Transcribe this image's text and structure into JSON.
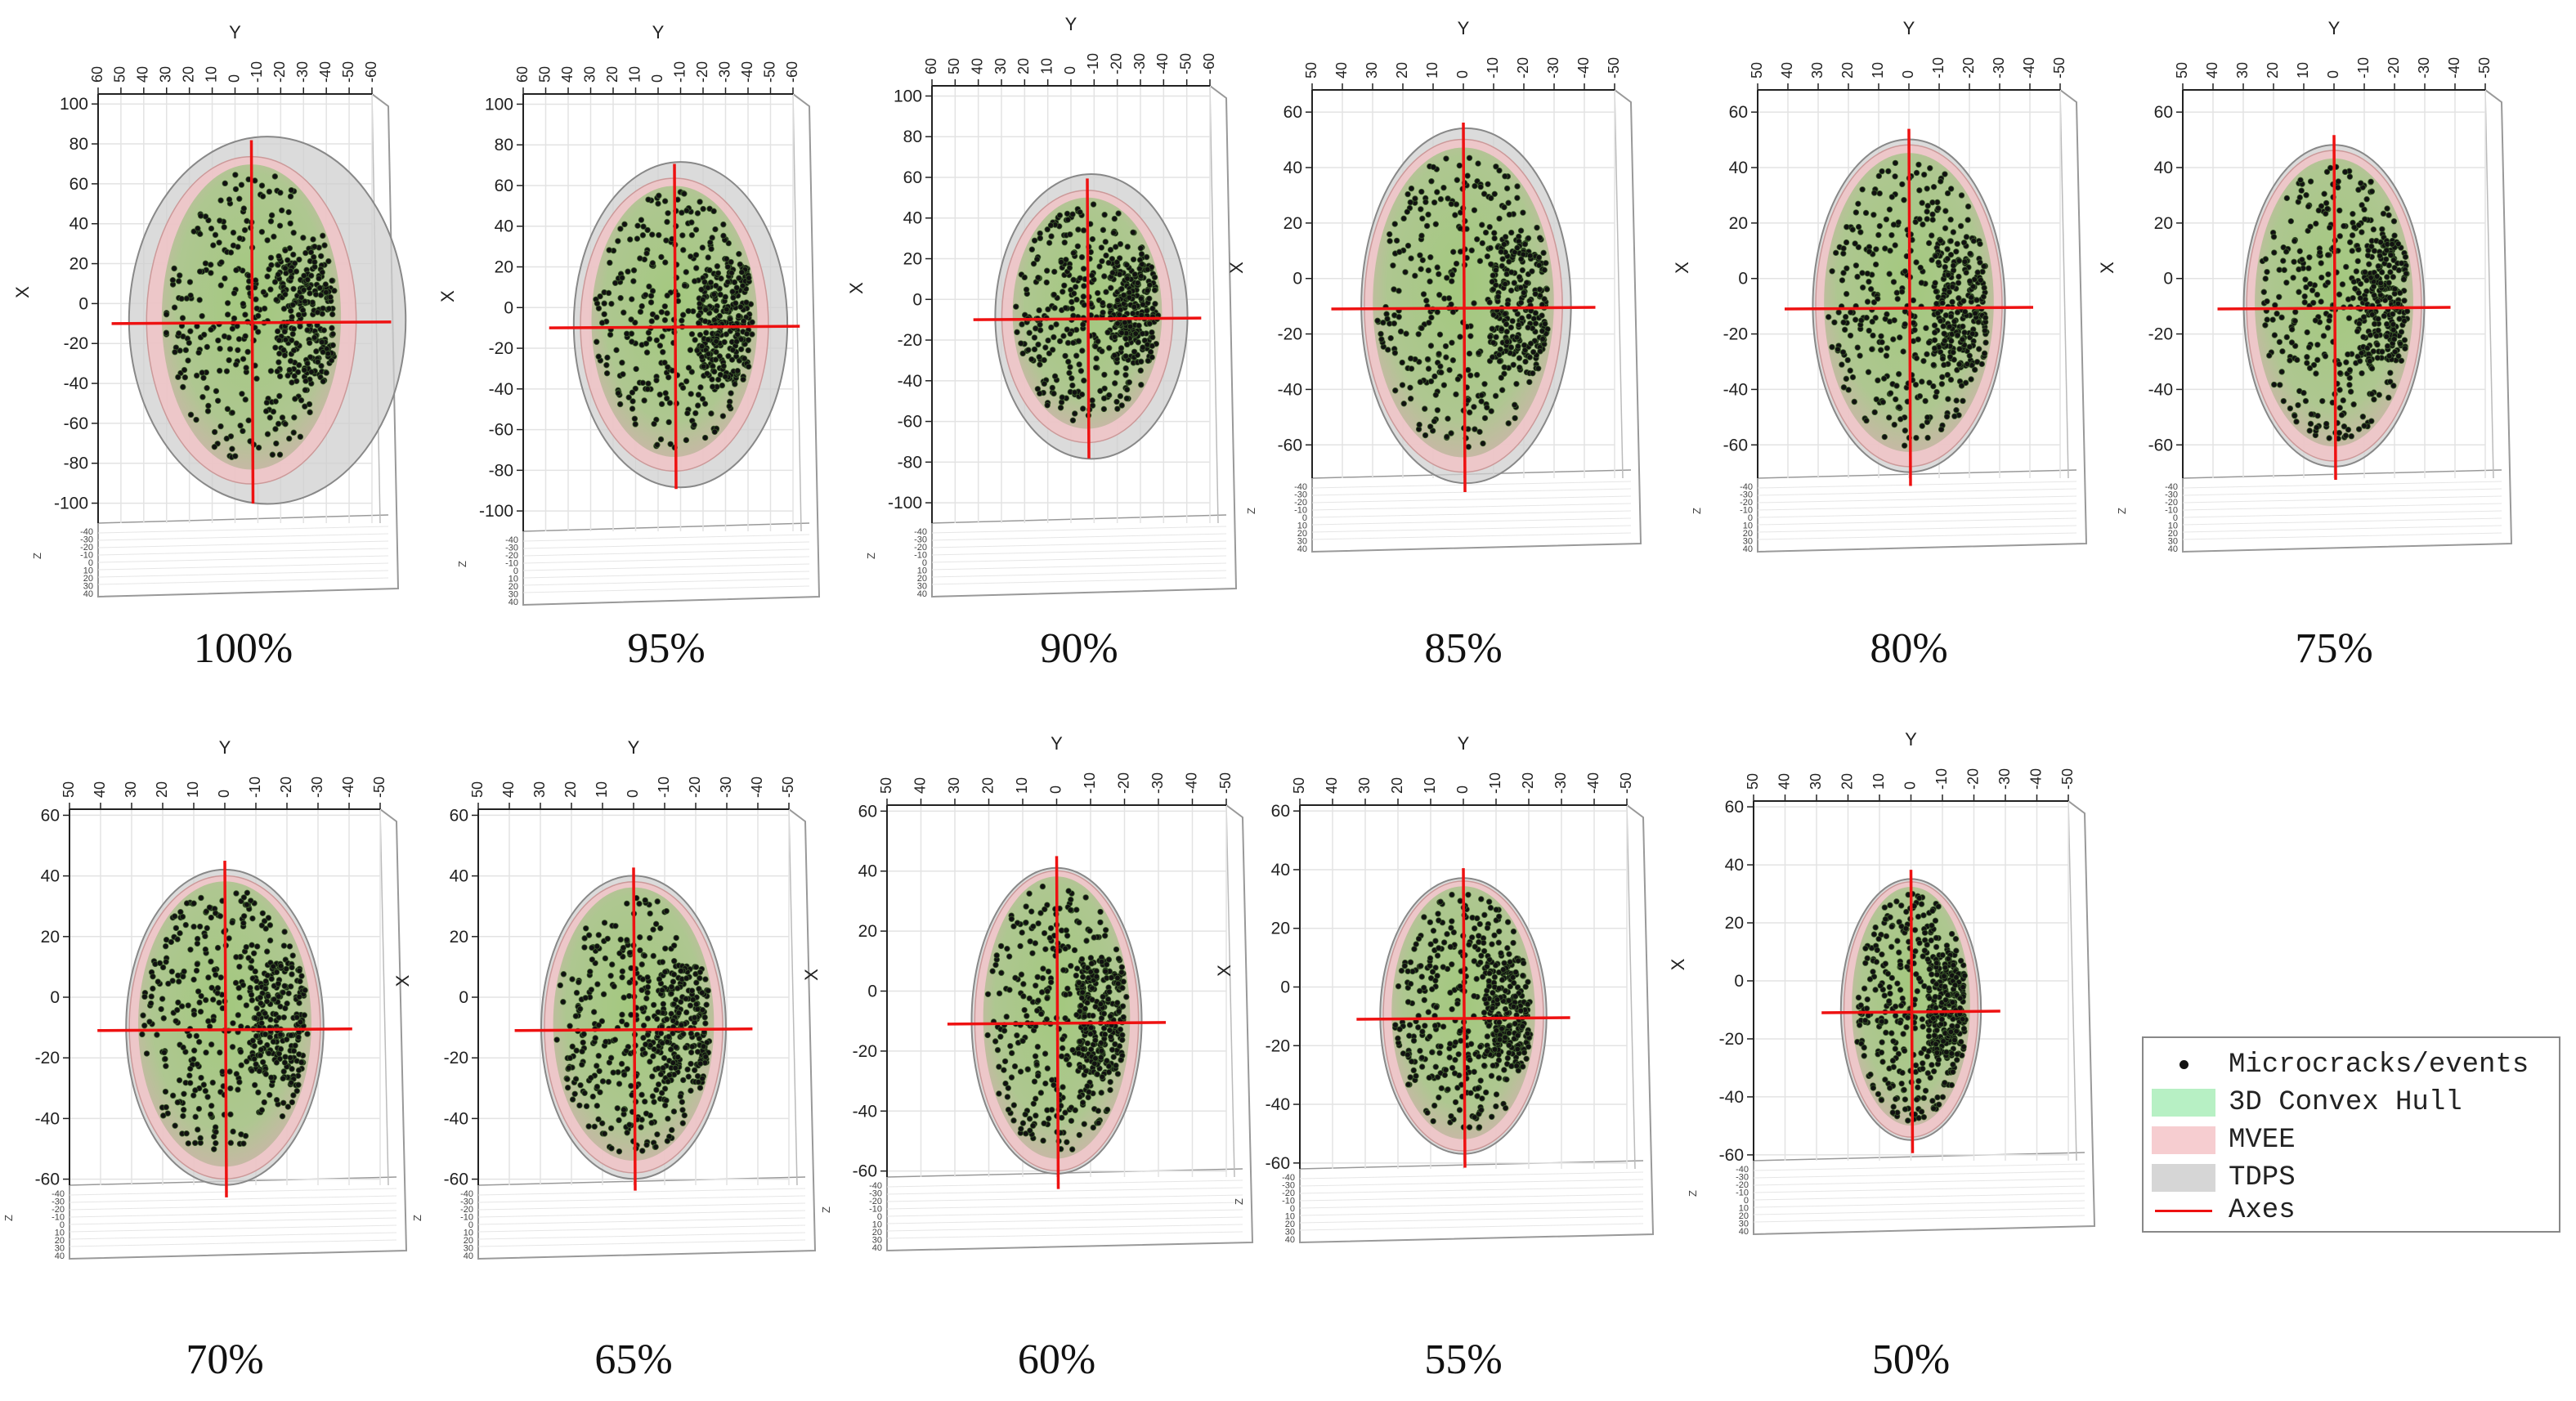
{
  "chart_data": {
    "type": "scatter3d-panels",
    "description_labels": true,
    "axes": {
      "y_label": "Y",
      "x_label": "X",
      "z_label": "Z"
    },
    "panels": [
      {
        "label": "100%",
        "yticks": [
          "60",
          "50",
          "40",
          "30",
          "20",
          "10",
          "0",
          "-10",
          "-20",
          "-30",
          "-40",
          "-50",
          "-60"
        ],
        "xticks": [
          "100",
          "80",
          "60",
          "40",
          "20",
          "0",
          "-20",
          "-40",
          "-60",
          "-80",
          "-100"
        ],
        "xlim": [
          -110,
          105
        ],
        "zticks": [
          "-40",
          "-30",
          "-20",
          "-10",
          "0",
          "10",
          "20",
          "30",
          "40"
        ],
        "mvee": {
          "rx": 50,
          "ry": 82
        },
        "tdps": {
          "rx": 66,
          "ry": 92,
          "dx": 8
        },
        "hull": {
          "rx": 44,
          "ry": 78
        },
        "center_y": -10
      },
      {
        "label": "95%",
        "yticks": [
          "60",
          "50",
          "40",
          "30",
          "20",
          "10",
          "0",
          "-10",
          "-20",
          "-30",
          "-40",
          "-50",
          "-60"
        ],
        "xticks": [
          "100",
          "80",
          "60",
          "40",
          "20",
          "0",
          "-20",
          "-40",
          "-60",
          "-80",
          "-100"
        ],
        "xlim": [
          -110,
          105
        ],
        "zticks": [
          "-40",
          "-30",
          "-20",
          "-10",
          "0",
          "10",
          "20",
          "30",
          "40"
        ],
        "mvee": {
          "rx": 44,
          "ry": 72
        },
        "tdps": {
          "rx": 50,
          "ry": 80,
          "dx": 3
        },
        "hull": {
          "rx": 40,
          "ry": 68
        },
        "center_y": -10
      },
      {
        "label": "90%",
        "yticks": [
          "60",
          "50",
          "40",
          "30",
          "20",
          "10",
          "0",
          "-10",
          "-20",
          "-30",
          "-40",
          "-50",
          "-60"
        ],
        "xticks": [
          "100",
          "80",
          "60",
          "40",
          "20",
          "0",
          "-20",
          "-40",
          "-60",
          "-80",
          "-100"
        ],
        "xlim": [
          -110,
          105
        ],
        "zticks": [
          "-40",
          "-30",
          "-20",
          "-10",
          "0",
          "10",
          "20",
          "30",
          "40"
        ],
        "mvee": {
          "rx": 40,
          "ry": 62
        },
        "tdps": {
          "rx": 45,
          "ry": 70,
          "dx": 2
        },
        "hull": {
          "rx": 36,
          "ry": 58
        },
        "center_y": -10
      },
      {
        "label": "85%",
        "yticks": [
          "50",
          "40",
          "30",
          "20",
          "10",
          "0",
          "-10",
          "-20",
          "-30",
          "-40",
          "-50"
        ],
        "xticks": [
          "60",
          "40",
          "20",
          "0",
          "-20",
          "-40",
          "-60"
        ],
        "xlim": [
          -72,
          68
        ],
        "zticks": [
          "-40",
          "-30",
          "-20",
          "-10",
          "0",
          "10",
          "20",
          "30",
          "40"
        ],
        "mvee": {
          "rx": 34,
          "ry": 60
        },
        "tdps": {
          "rx": 36,
          "ry": 64,
          "dx": 1
        },
        "hull": {
          "rx": 32,
          "ry": 57
        },
        "center_y": -11
      },
      {
        "label": "80%",
        "yticks": [
          "50",
          "40",
          "30",
          "20",
          "10",
          "0",
          "-10",
          "-20",
          "-30",
          "-40",
          "-50"
        ],
        "xticks": [
          "60",
          "40",
          "20",
          "0",
          "-20",
          "-40",
          "-60"
        ],
        "xlim": [
          -72,
          68
        ],
        "zticks": [
          "-40",
          "-30",
          "-20",
          "-10",
          "0",
          "10",
          "20",
          "30",
          "40"
        ],
        "mvee": {
          "rx": 32,
          "ry": 58
        },
        "tdps": {
          "rx": 33,
          "ry": 60,
          "dx": 0
        },
        "hull": {
          "rx": 30,
          "ry": 55
        },
        "center_y": -11
      },
      {
        "label": "75%",
        "yticks": [
          "50",
          "40",
          "30",
          "20",
          "10",
          "0",
          "-10",
          "-20",
          "-30",
          "-40",
          "-50"
        ],
        "xticks": [
          "60",
          "40",
          "20",
          "0",
          "-20",
          "-40",
          "-60"
        ],
        "xlim": [
          -72,
          68
        ],
        "zticks": [
          "-40",
          "-30",
          "-20",
          "-10",
          "0",
          "10",
          "20",
          "30",
          "40"
        ],
        "mvee": {
          "rx": 30,
          "ry": 56
        },
        "tdps": {
          "rx": 31,
          "ry": 58,
          "dx": 0
        },
        "hull": {
          "rx": 28,
          "ry": 53
        },
        "center_y": -11
      },
      {
        "label": "70%",
        "yticks": [
          "50",
          "40",
          "30",
          "20",
          "10",
          "0",
          "-10",
          "-20",
          "-30",
          "-40",
          "-50"
        ],
        "xticks": [
          "60",
          "40",
          "20",
          "0",
          "-20",
          "-40",
          "-60"
        ],
        "xlim": [
          -62,
          62
        ],
        "zticks": [
          "-40",
          "-30",
          "-20",
          "-10",
          "0",
          "10",
          "20",
          "30",
          "40"
        ],
        "mvee": {
          "rx": 30,
          "ry": 50
        },
        "tdps": {
          "rx": 31,
          "ry": 52,
          "dx": 0
        },
        "hull": {
          "rx": 28,
          "ry": 48
        },
        "center_y": -11
      },
      {
        "label": "65%",
        "yticks": [
          "50",
          "40",
          "30",
          "20",
          "10",
          "0",
          "-10",
          "-20",
          "-30",
          "-40",
          "-50"
        ],
        "xticks": [
          "60",
          "40",
          "20",
          "0",
          "-20",
          "-40",
          "-60"
        ],
        "xlim": [
          -62,
          62
        ],
        "zticks": [
          "-40",
          "-30",
          "-20",
          "-10",
          "0",
          "10",
          "20",
          "30",
          "40"
        ],
        "mvee": {
          "rx": 28,
          "ry": 48
        },
        "tdps": {
          "rx": 29,
          "ry": 50,
          "dx": 0
        },
        "hull": {
          "rx": 26,
          "ry": 46
        },
        "center_y": -11
      },
      {
        "label": "60%",
        "yticks": [
          "50",
          "40",
          "30",
          "20",
          "10",
          "0",
          "-10",
          "-20",
          "-30",
          "-40",
          "-50"
        ],
        "xticks": [
          "60",
          "40",
          "20",
          "0",
          "-20",
          "-40",
          "-60"
        ],
        "xlim": [
          -62,
          62
        ],
        "zticks": [
          "-40",
          "-30",
          "-20",
          "-10",
          "0",
          "10",
          "20",
          "30",
          "40"
        ],
        "mvee": {
          "rx": 26,
          "ry": 50
        },
        "tdps": {
          "rx": 27,
          "ry": 51,
          "dx": 0
        },
        "hull": {
          "rx": 24,
          "ry": 48
        },
        "center_y": -11
      },
      {
        "label": "55%",
        "yticks": [
          "50",
          "40",
          "30",
          "20",
          "10",
          "0",
          "-10",
          "-20",
          "-30",
          "-40",
          "-50"
        ],
        "xticks": [
          "60",
          "40",
          "20",
          "0",
          "-20",
          "-40",
          "-60"
        ],
        "xlim": [
          -62,
          62
        ],
        "zticks": [
          "-40",
          "-30",
          "-20",
          "-10",
          "0",
          "10",
          "20",
          "30",
          "40"
        ],
        "mvee": {
          "rx": 26,
          "ry": 46
        },
        "tdps": {
          "rx": 27,
          "ry": 47,
          "dx": 0
        },
        "hull": {
          "rx": 24,
          "ry": 44
        },
        "center_y": -11
      },
      {
        "label": "50%",
        "yticks": [
          "50",
          "40",
          "30",
          "20",
          "10",
          "0",
          "-10",
          "-20",
          "-30",
          "-40",
          "-50"
        ],
        "xticks": [
          "60",
          "40",
          "20",
          "0",
          "-20",
          "-40",
          "-60"
        ],
        "xlim": [
          -62,
          62
        ],
        "zticks": [
          "-40",
          "-30",
          "-20",
          "-10",
          "0",
          "10",
          "20",
          "30",
          "40"
        ],
        "mvee": {
          "rx": 22,
          "ry": 44
        },
        "tdps": {
          "rx": 23,
          "ry": 45,
          "dx": 0
        },
        "hull": {
          "rx": 20,
          "ry": 42
        },
        "center_y": -11
      }
    ],
    "legend": [
      {
        "key": "events",
        "label": "Microcracks/events",
        "color": "#111111"
      },
      {
        "key": "hull",
        "label": "3D Convex Hull",
        "color": "#b7f0c4"
      },
      {
        "key": "mvee",
        "label": "MVEE",
        "color": "#f6cdd0"
      },
      {
        "key": "tdps",
        "label": "TDPS",
        "color": "#d6d6d6"
      },
      {
        "key": "axes",
        "label": "Axes",
        "color": "#e11111"
      }
    ]
  }
}
